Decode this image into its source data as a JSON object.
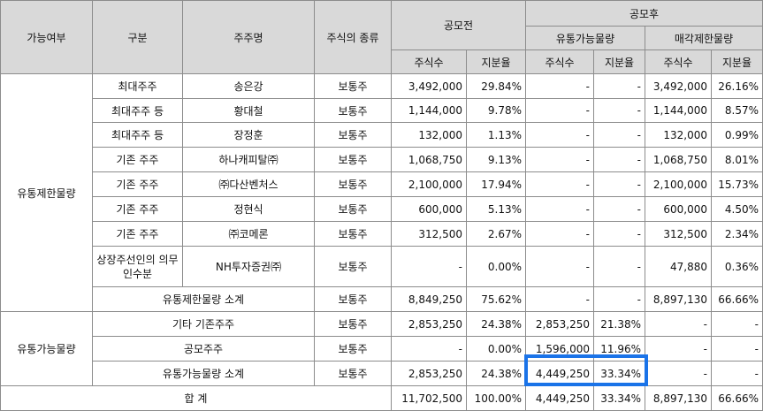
{
  "headers": {
    "category": "가능여부",
    "type": "구분",
    "holder": "주주명",
    "stock_kind": "주식의 종류",
    "before_ipo": "공모전",
    "after_ipo": "공모후",
    "tradable": "유통가능물량",
    "restricted_sale": "매각제한물량",
    "shares": "주식수",
    "ratio": "지분율"
  },
  "groups": {
    "restricted": "유통제한물량",
    "tradable": "유통가능물량"
  },
  "restricted_rows": [
    {
      "type": "최대주주",
      "holder": "송은강",
      "kind": "보통주",
      "pre_shares": "3,492,000",
      "pre_ratio": "29.84%",
      "t_shares": "-",
      "t_ratio": "-",
      "r_shares": "3,492,000",
      "r_ratio": "26.16%"
    },
    {
      "type": "최대주주 등",
      "holder": "황대철",
      "kind": "보통주",
      "pre_shares": "1,144,000",
      "pre_ratio": "9.78%",
      "t_shares": "-",
      "t_ratio": "-",
      "r_shares": "1,144,000",
      "r_ratio": "8.57%"
    },
    {
      "type": "최대주주 등",
      "holder": "장정훈",
      "kind": "보통주",
      "pre_shares": "132,000",
      "pre_ratio": "1.13%",
      "t_shares": "-",
      "t_ratio": "-",
      "r_shares": "132,000",
      "r_ratio": "0.99%"
    },
    {
      "type": "기존 주주",
      "holder": "하나캐피탈㈜",
      "kind": "보통주",
      "pre_shares": "1,068,750",
      "pre_ratio": "9.13%",
      "t_shares": "-",
      "t_ratio": "-",
      "r_shares": "1,068,750",
      "r_ratio": "8.01%"
    },
    {
      "type": "기존 주주",
      "holder": "㈜다산벤처스",
      "kind": "보통주",
      "pre_shares": "2,100,000",
      "pre_ratio": "17.94%",
      "t_shares": "-",
      "t_ratio": "-",
      "r_shares": "2,100,000",
      "r_ratio": "15.73%"
    },
    {
      "type": "기존 주주",
      "holder": "정현식",
      "kind": "보통주",
      "pre_shares": "600,000",
      "pre_ratio": "5.13%",
      "t_shares": "-",
      "t_ratio": "-",
      "r_shares": "600,000",
      "r_ratio": "4.50%"
    },
    {
      "type": "기존 주주",
      "holder": "㈜코메론",
      "kind": "보통주",
      "pre_shares": "312,500",
      "pre_ratio": "2.67%",
      "t_shares": "-",
      "t_ratio": "-",
      "r_shares": "312,500",
      "r_ratio": "2.34%"
    },
    {
      "type": "상장주선인의 의무인수분",
      "holder": "NH투자증권㈜",
      "kind": "보통주",
      "pre_shares": "-",
      "pre_ratio": "0.00%",
      "t_shares": "-",
      "t_ratio": "-",
      "r_shares": "47,880",
      "r_ratio": "0.36%"
    }
  ],
  "restricted_subtotal": {
    "label": "유통제한물량 소계",
    "kind": "보통주",
    "pre_shares": "8,849,250",
    "pre_ratio": "75.62%",
    "t_shares": "-",
    "t_ratio": "-",
    "r_shares": "8,897,130",
    "r_ratio": "66.66%"
  },
  "tradable_rows": [
    {
      "label": "기타 기존주주",
      "kind": "보통주",
      "pre_shares": "2,853,250",
      "pre_ratio": "24.38%",
      "t_shares": "2,853,250",
      "t_ratio": "21.38%",
      "r_shares": "-",
      "r_ratio": "-"
    },
    {
      "label": "공모주주",
      "kind": "보통주",
      "pre_shares": "-",
      "pre_ratio": "0.00%",
      "t_shares": "1,596,000",
      "t_ratio": "11.96%",
      "r_shares": "-",
      "r_ratio": "-"
    },
    {
      "label": "유통가능물량 소계",
      "kind": "보통주",
      "pre_shares": "2,853,250",
      "pre_ratio": "24.38%",
      "t_shares": "4,449,250",
      "t_ratio": "33.34%",
      "r_shares": "-",
      "r_ratio": "-"
    }
  ],
  "total": {
    "label": "합 계",
    "pre_shares": "11,702,500",
    "pre_ratio": "100.00%",
    "t_shares": "4,449,250",
    "t_ratio": "33.34%",
    "r_shares": "8,897,130",
    "r_ratio": "66.66%"
  },
  "highlight_color": "#1a73e8"
}
